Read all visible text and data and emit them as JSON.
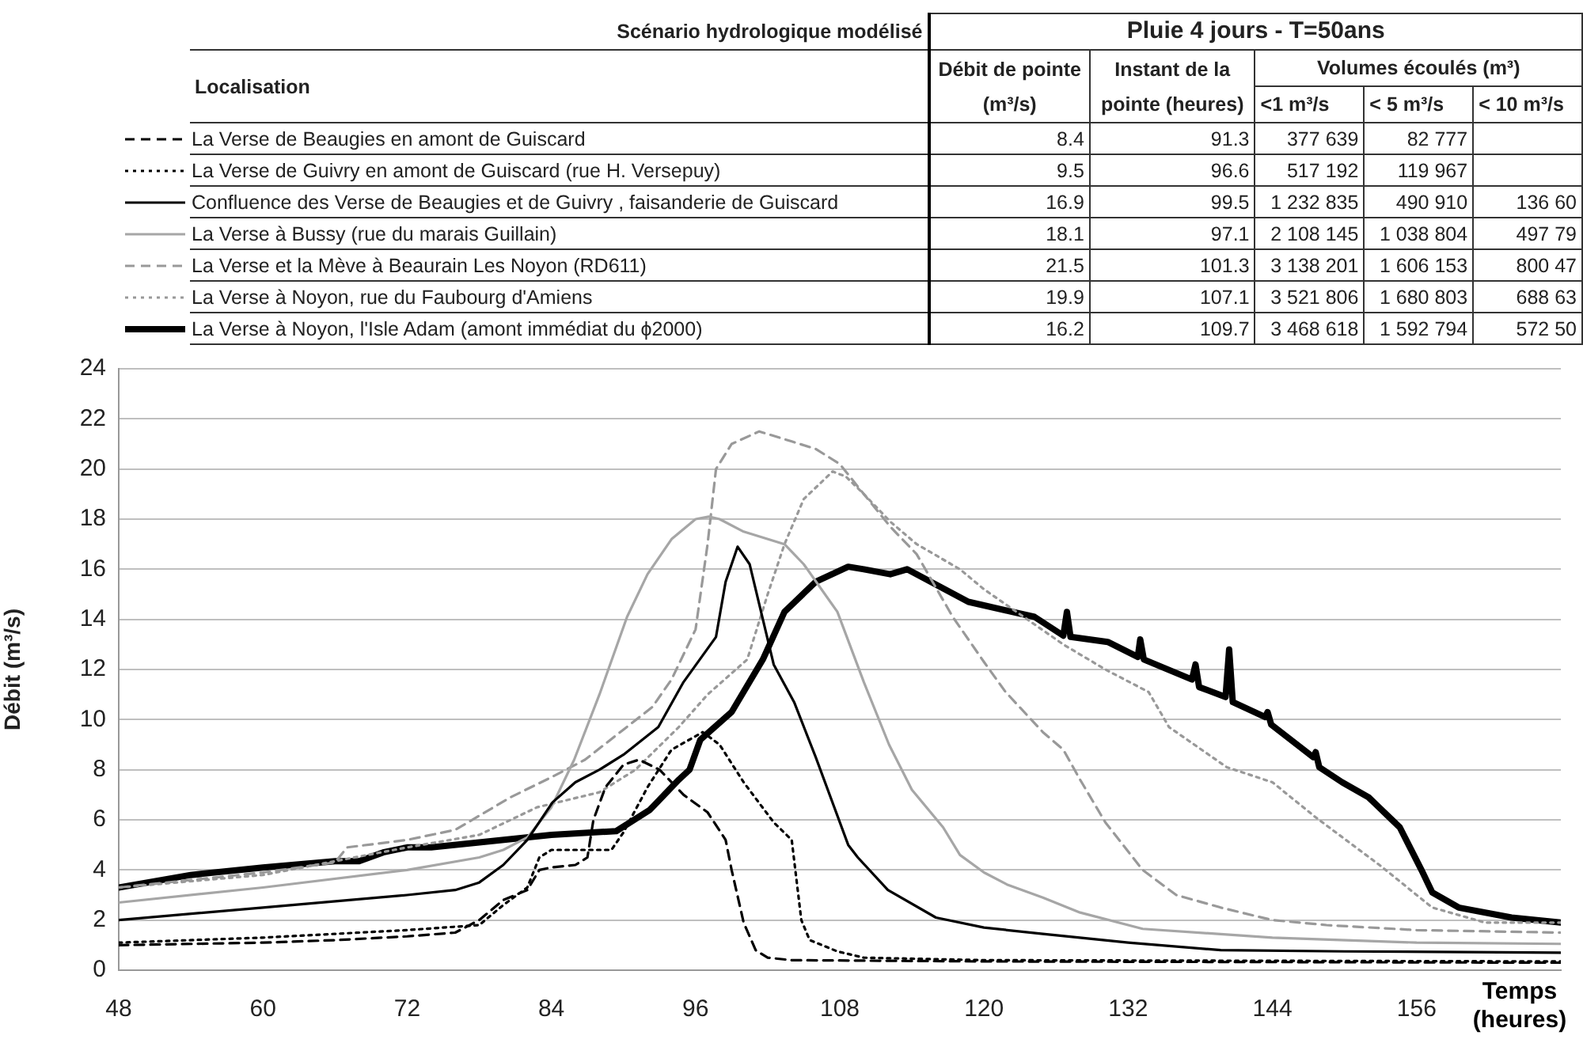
{
  "chart_data": [
    {
      "type": "other",
      "title": "Pluie 4 jours - T=50ans",
      "subtitle": "Scénario hydrologique modélisé",
      "categories": [
        "Localisation",
        "Débit de pointe (m³/s)",
        "Instant de la pointe (heures)",
        "<1 m³/s",
        "< 5 m³/s",
        "< 10 m³/s"
      ],
      "annotations": [
        "Volumes écoulés (m³)"
      ],
      "cell_labels": [
        [
          "8.4",
          "91.3",
          "377 639",
          "82 777",
          null
        ],
        [
          "9.5",
          "96.6",
          "517 192",
          "119 967",
          null
        ],
        [
          "16.9",
          "99.5",
          "1 232 835",
          "490 910",
          "136 60"
        ],
        [
          "18.1",
          "97.1",
          "2 108 145",
          "1 038 804",
          "497 79"
        ],
        [
          "21.5",
          "101.3",
          "3 138 201",
          "1 606 153",
          "800 47"
        ],
        [
          "19.9",
          "107.1",
          "3 521 806",
          "1 680 803",
          "688 63"
        ],
        [
          "16.2",
          "109.7",
          "3 468 618",
          "1 592 794",
          "572 50"
        ]
      ]
    },
    {
      "type": "line",
      "xlabel": "Temps (heures)",
      "ylabel": "Débit (m³/s)",
      "xlim": [
        48,
        168
      ],
      "xticks": [
        48,
        60,
        72,
        84,
        96,
        108,
        120,
        132,
        144,
        156
      ],
      "ylim": [
        0,
        24
      ],
      "yticks": [
        0,
        2,
        4,
        6,
        8,
        10,
        12,
        14,
        16,
        18,
        20,
        22,
        24
      ],
      "grid": "y",
      "legend": "top",
      "marker": "none",
      "series": [
        {
          "name": "La Verse de Beaugies en amont de Guiscard",
          "color": "#000000",
          "line_style": "dashed",
          "x": [
            48,
            60,
            66,
            72,
            76,
            78,
            80,
            82,
            83,
            84,
            86,
            87,
            87.5,
            88.5,
            90,
            91.3,
            93,
            95,
            97,
            98.5,
            99,
            100,
            101,
            102,
            104,
            120,
            168
          ],
          "values": [
            1.0,
            1.1,
            1.2,
            1.35,
            1.5,
            2.0,
            2.8,
            3.2,
            4.0,
            4.1,
            4.2,
            4.5,
            6.0,
            7.3,
            8.2,
            8.4,
            8.0,
            7.0,
            6.3,
            5.2,
            4.0,
            1.9,
            0.8,
            0.5,
            0.4,
            0.35,
            0.3
          ]
        },
        {
          "name": "La Verse de Guivry en amont de Guiscard (rue H. Versepuy)",
          "color": "#000000",
          "line_style": "dotted",
          "x": [
            48,
            60,
            72,
            78,
            80,
            82,
            83,
            84,
            86,
            89,
            90,
            92,
            94,
            96.6,
            98,
            100,
            102.5,
            104,
            104.8,
            105.5,
            107.8,
            110,
            120,
            168
          ],
          "values": [
            1.1,
            1.3,
            1.6,
            1.8,
            2.6,
            3.3,
            4.5,
            4.8,
            4.8,
            4.8,
            5.5,
            7.3,
            8.8,
            9.5,
            9.0,
            7.5,
            5.9,
            5.2,
            2.0,
            1.2,
            0.75,
            0.5,
            0.4,
            0.35
          ]
        },
        {
          "name": "Confluence des Verse de Beaugies et de Guivry , faisanderie de Guiscard",
          "color": "#000000",
          "line_style": "solid",
          "x": [
            48,
            60,
            72,
            76,
            78,
            80,
            82,
            84.1,
            86,
            88,
            90,
            92.9,
            95,
            97.7,
            98.5,
            99.5,
            100.5,
            102.5,
            104.2,
            106,
            108.7,
            109.5,
            112,
            116,
            120,
            124.9,
            132,
            139.7,
            150,
            168
          ],
          "values": [
            2.0,
            2.5,
            3.0,
            3.2,
            3.5,
            4.2,
            5.2,
            6.7,
            7.5,
            8.0,
            8.6,
            9.7,
            11.5,
            13.3,
            15.5,
            16.9,
            16.2,
            12.2,
            10.7,
            8.5,
            5.0,
            4.5,
            3.2,
            2.1,
            1.7,
            1.45,
            1.1,
            0.8,
            0.75,
            0.7
          ]
        },
        {
          "name": "La Verse à Bussy (rue du marais Guillain)",
          "color": "#a6a6a6",
          "line_style": "solid",
          "x": [
            48,
            60,
            72,
            78,
            80,
            82,
            84,
            85.9,
            88,
            90.3,
            92,
            94,
            96,
            97.1,
            98,
            100,
            103.4,
            105,
            107.8,
            110,
            112.1,
            114,
            116.6,
            118,
            120,
            122,
            124.9,
            128,
            133.2,
            144,
            156,
            168
          ],
          "values": [
            2.7,
            3.3,
            4.0,
            4.5,
            4.8,
            5.3,
            6.5,
            8.4,
            11.0,
            14.1,
            15.8,
            17.2,
            18.0,
            18.1,
            18.0,
            17.5,
            17.0,
            16.2,
            14.3,
            11.5,
            9.0,
            7.2,
            5.7,
            4.6,
            3.9,
            3.4,
            2.9,
            2.3,
            1.65,
            1.3,
            1.1,
            1.05
          ]
        },
        {
          "name": "La Verse et la Mève à Beaurain Les Noyon (RD611)",
          "color": "#999999",
          "line_style": "dashed",
          "x": [
            48,
            60,
            66,
            67,
            72,
            76,
            80.6,
            84,
            86.8,
            90,
            92.4,
            94,
            96,
            97,
            97.7,
            99,
            101.3,
            104,
            106,
            108,
            109.5,
            112.2,
            114.4,
            117.4,
            120,
            121.8,
            124.9,
            126.6,
            128,
            130.1,
            133.2,
            136,
            139.7,
            144,
            148.5,
            156,
            168
          ],
          "values": [
            3.3,
            3.9,
            4.3,
            4.9,
            5.2,
            5.6,
            6.9,
            7.7,
            8.4,
            9.6,
            10.5,
            11.6,
            13.6,
            17.0,
            20.0,
            21.0,
            21.5,
            21.1,
            20.8,
            20.2,
            19.3,
            17.7,
            16.6,
            14.1,
            12.3,
            11.1,
            9.5,
            8.8,
            7.6,
            5.9,
            4.0,
            3.0,
            2.5,
            2.0,
            1.8,
            1.6,
            1.5
          ]
        },
        {
          "name": "La Verse à Noyon, rue du Faubourg d'Amiens",
          "color": "#999999",
          "line_style": "dotted",
          "x": [
            48,
            60,
            72,
            78,
            82.8,
            88,
            91,
            94.6,
            97,
            100.3,
            102,
            103.4,
            105,
            107.4,
            108.5,
            110,
            112.2,
            114.4,
            118,
            120,
            124.2,
            126.6,
            130.1,
            133.7,
            135.4,
            140.2,
            144,
            147.6,
            152.9,
            157.3,
            161.7,
            168
          ],
          "values": [
            3.3,
            3.8,
            4.9,
            5.4,
            6.5,
            7.1,
            8.0,
            9.7,
            11.0,
            12.4,
            15.0,
            17.0,
            18.8,
            19.9,
            19.7,
            19.0,
            17.9,
            17.0,
            16.0,
            15.2,
            13.8,
            13.0,
            12.0,
            11.1,
            9.7,
            8.1,
            7.5,
            6.1,
            4.2,
            2.5,
            1.9,
            1.9
          ]
        },
        {
          "name": "La Verse à Noyon, l'Isle Adam (amont immédiat du ϕ2000)",
          "color": "#000000",
          "line_style": "solid",
          "x": [
            48,
            54,
            60,
            66,
            68,
            70,
            72,
            74,
            78,
            84,
            89.4,
            92.2,
            94.6,
            95.5,
            96.4,
            99,
            101.6,
            103.4,
            106,
            108.7,
            110,
            112.2,
            113.6,
            118.7,
            124.2,
            126.6,
            126.9,
            127.2,
            130.3,
            132.8,
            133,
            133.3,
            137.3,
            137.6,
            137.9,
            140.1,
            140.4,
            140.7,
            143.4,
            143.6,
            143.9,
            147.4,
            147.6,
            147.9,
            149.8,
            152,
            154.6,
            156.4,
            157.3,
            159.5,
            163.9,
            168
          ],
          "values": [
            3.3,
            3.8,
            4.1,
            4.35,
            4.35,
            4.7,
            4.9,
            4.9,
            5.1,
            5.4,
            5.55,
            6.4,
            7.6,
            8.0,
            9.2,
            10.3,
            12.4,
            14.3,
            15.5,
            16.1,
            16.0,
            15.8,
            16.0,
            14.7,
            14.1,
            13.35,
            14.3,
            13.3,
            13.1,
            12.5,
            13.2,
            12.4,
            11.6,
            12.2,
            11.3,
            10.9,
            12.8,
            10.7,
            10.1,
            10.3,
            9.8,
            8.5,
            8.7,
            8.1,
            7.5,
            6.9,
            5.7,
            4.0,
            3.1,
            2.5,
            2.1,
            1.9
          ]
        }
      ]
    }
  ]
}
